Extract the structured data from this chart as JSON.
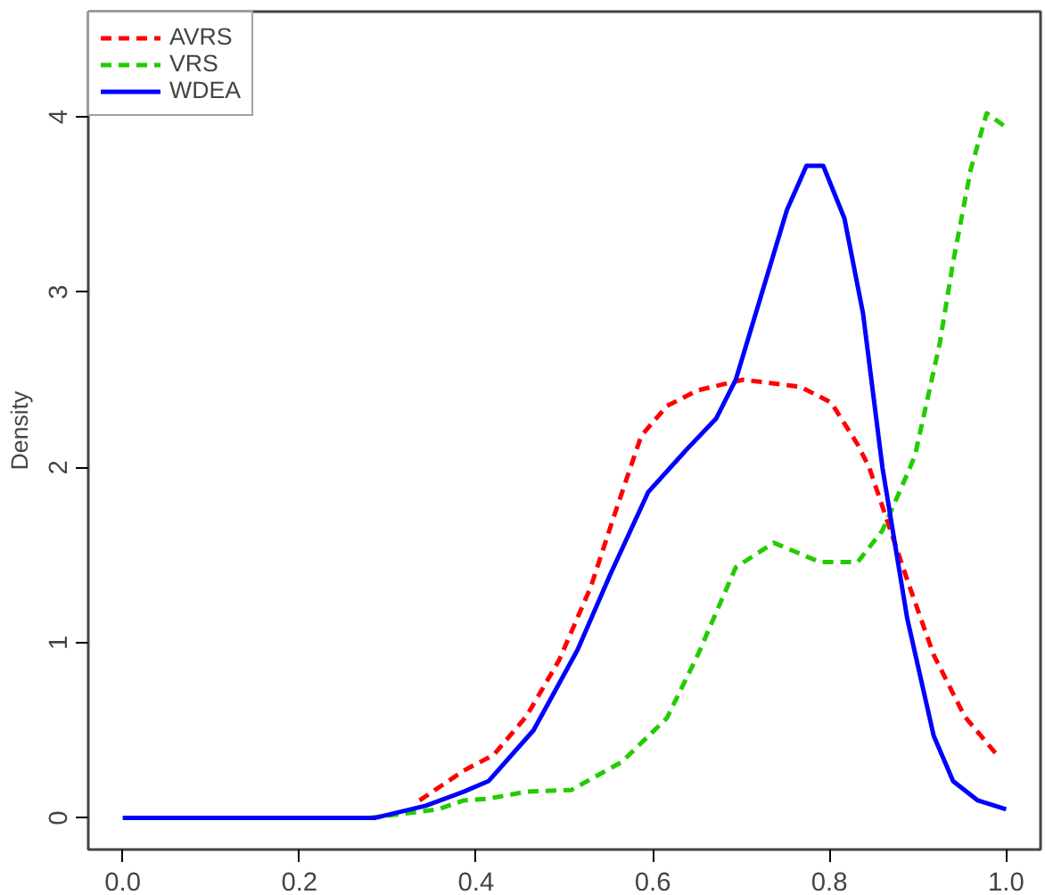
{
  "chart_data": {
    "type": "line",
    "ylabel": "Density",
    "xlim": [
      -0.039,
      1.039
    ],
    "ylim": [
      -0.18,
      4.6
    ],
    "xticks": [
      {
        "value": 0,
        "label": "0.0"
      },
      0.2,
      0.4,
      0.6,
      0.8,
      {
        "value": 1,
        "label": "1.0"
      }
    ],
    "yticks": [
      0,
      1,
      2,
      3,
      4
    ],
    "grid": false,
    "legend": "top left",
    "marker": "none",
    "series": [
      {
        "name": "AVRS",
        "color": "#ff0000",
        "line_style": "dashed",
        "x": [
          0.336,
          0.386,
          0.42,
          0.457,
          0.494,
          0.53,
          0.558,
          0.587,
          0.616,
          0.651,
          0.702,
          0.767,
          0.802,
          0.832,
          0.845,
          0.888,
          0.918,
          0.953,
          0.993
        ],
        "values": [
          0.1,
          0.27,
          0.36,
          0.58,
          0.9,
          1.32,
          1.75,
          2.18,
          2.35,
          2.44,
          2.5,
          2.46,
          2.37,
          2.13,
          2.0,
          1.36,
          0.93,
          0.58,
          0.34
        ]
      },
      {
        "name": "VRS",
        "color": "#22cc00",
        "line_style": "dashed",
        "x": [
          0.28,
          0.357,
          0.386,
          0.414,
          0.457,
          0.508,
          0.565,
          0.616,
          0.651,
          0.694,
          0.737,
          0.789,
          0.832,
          0.86,
          0.888,
          0.897,
          0.925,
          0.94,
          0.96,
          0.978,
          1.0
        ],
        "values": [
          0,
          0.05,
          0.1,
          0.11,
          0.15,
          0.16,
          0.32,
          0.57,
          0.93,
          1.43,
          1.57,
          1.46,
          1.46,
          1.64,
          1.96,
          2.07,
          2.71,
          3.17,
          3.7,
          4.02,
          3.94
        ]
      },
      {
        "name": "WDEA",
        "color": "#0000ff",
        "line_style": "solid",
        "x": [
          0,
          0.285,
          0.343,
          0.386,
          0.414,
          0.465,
          0.515,
          0.552,
          0.595,
          0.638,
          0.672,
          0.694,
          0.752,
          0.774,
          0.793,
          0.817,
          0.838,
          0.86,
          0.888,
          0.918,
          0.94,
          0.968,
          1.0
        ],
        "values": [
          0,
          0,
          0.07,
          0.15,
          0.21,
          0.5,
          0.96,
          1.39,
          1.86,
          2.1,
          2.28,
          2.5,
          3.47,
          3.72,
          3.72,
          3.42,
          2.88,
          2.0,
          1.14,
          0.47,
          0.21,
          0.1,
          0.05
        ]
      }
    ]
  }
}
